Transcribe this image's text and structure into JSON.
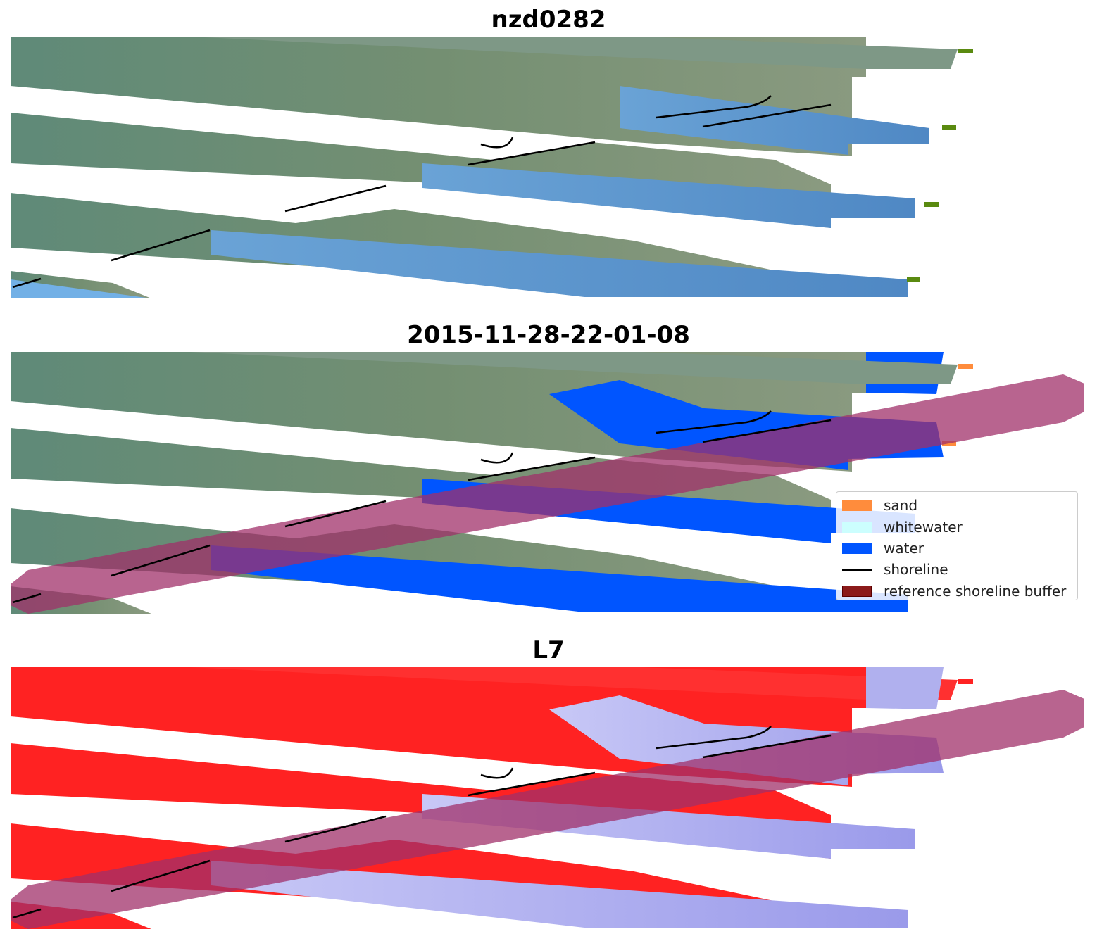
{
  "panels": [
    {
      "title": "nzd0282"
    },
    {
      "title": "2015-11-28-22-01-08"
    },
    {
      "title": "L7"
    }
  ],
  "legend": {
    "items": [
      {
        "label": "sand",
        "color": "#ff8c3c",
        "kind": "swatch"
      },
      {
        "label": "whitewater",
        "color": "#ccfefe",
        "kind": "swatch"
      },
      {
        "label": "water",
        "color": "#0055ff",
        "kind": "swatch"
      },
      {
        "label": "shoreline",
        "color": "#000000",
        "kind": "line"
      },
      {
        "label": "reference shoreline buffer",
        "color": "#8b1a1a",
        "kind": "swatch"
      }
    ]
  },
  "colors": {
    "land_rgb": "#6f8f7f",
    "sea_rgb": "#5f94c8",
    "water_class": "#0055ff",
    "sand_class": "#ff8c3c",
    "buffer_overlay": "#a0306a",
    "index_land": "#ff2020",
    "index_water": "#a8a8f0",
    "shoreline": "#000000"
  }
}
